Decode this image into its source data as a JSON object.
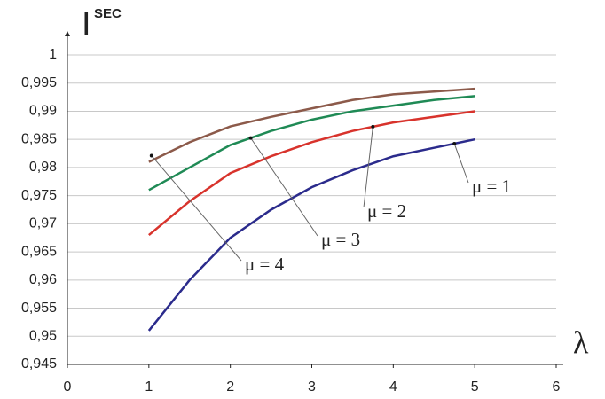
{
  "chart_data": {
    "type": "line",
    "ylabel": {
      "text": "I",
      "superscript": "SEC"
    },
    "xlabel": "λ",
    "xlim": [
      0,
      6
    ],
    "xticks": [
      0,
      1,
      2,
      3,
      4,
      5,
      6
    ],
    "ylim": [
      0.945,
      1
    ],
    "yticks": [
      {
        "value": 0.945,
        "label": "0,945"
      },
      {
        "value": 0.95,
        "label": "0,95"
      },
      {
        "value": 0.955,
        "label": "0,955"
      },
      {
        "value": 0.96,
        "label": "0,96"
      },
      {
        "value": 0.965,
        "label": "0,965"
      },
      {
        "value": 0.97,
        "label": "0,97"
      },
      {
        "value": 0.975,
        "label": "0,975"
      },
      {
        "value": 0.98,
        "label": "0,98"
      },
      {
        "value": 0.985,
        "label": "0,985"
      },
      {
        "value": 0.99,
        "label": "0,99"
      },
      {
        "value": 0.995,
        "label": "0,995"
      },
      1
    ],
    "grid": true,
    "x": [
      1,
      1.5,
      2,
      2.5,
      3,
      3.5,
      4,
      4.5,
      5
    ],
    "series": [
      {
        "name": "μ = 1",
        "color": "#2b2b8c",
        "values": [
          0.951,
          0.96,
          0.9675,
          0.9725,
          0.9765,
          0.9795,
          0.982,
          0.9835,
          0.985
        ]
      },
      {
        "name": "μ = 2",
        "color": "#d8332c",
        "values": [
          0.968,
          0.974,
          0.979,
          0.982,
          0.9845,
          0.9865,
          0.988,
          0.989,
          0.99
        ]
      },
      {
        "name": "μ = 3",
        "color": "#1f8a55",
        "values": [
          0.976,
          0.98,
          0.984,
          0.9865,
          0.9885,
          0.99,
          0.991,
          0.992,
          0.9927
        ]
      },
      {
        "name": "μ = 4",
        "color": "#8c5a4a",
        "values": [
          0.981,
          0.9845,
          0.9873,
          0.989,
          0.9905,
          0.992,
          0.993,
          0.9935,
          0.994
        ]
      }
    ]
  }
}
